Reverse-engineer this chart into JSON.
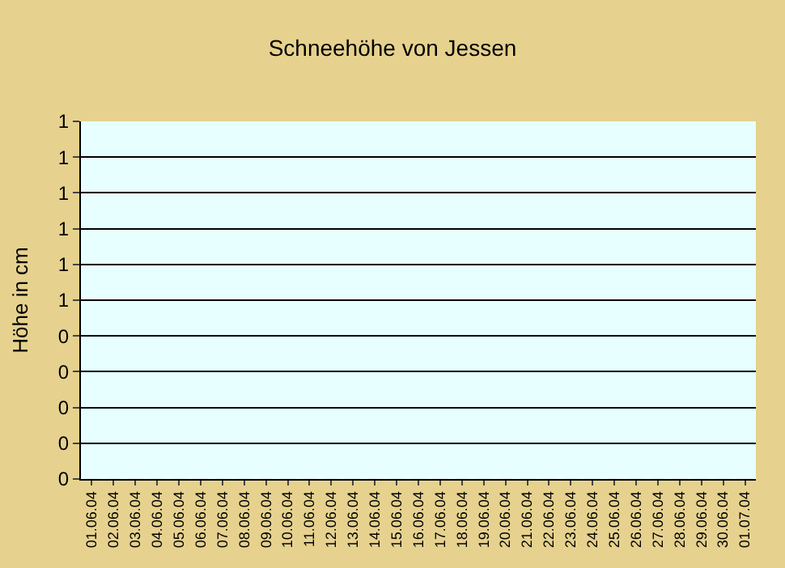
{
  "chart_data": {
    "type": "bar",
    "title": "Schneehöhe von Jessen",
    "ylabel": "Höhe in cm",
    "categories": [
      "01.06.04",
      "02.06.04",
      "03.06.04",
      "04.06.04",
      "05.06.04",
      "06.06.04",
      "07.06.04",
      "08.06.04",
      "09.06.04",
      "10.06.04",
      "11.06.04",
      "12.06.04",
      "13.06.04",
      "14.06.04",
      "15.06.04",
      "16.06.04",
      "17.06.04",
      "18.06.04",
      "19.06.04",
      "20.06.04",
      "21.06.04",
      "22.06.04",
      "23.06.04",
      "24.06.04",
      "25.06.04",
      "26.06.04",
      "27.06.04",
      "28.06.04",
      "29.06.04",
      "30.06.04",
      "01.07.04"
    ],
    "values": [
      0,
      0,
      0,
      0,
      0,
      0,
      0,
      0,
      0,
      0,
      0,
      0,
      0,
      0,
      0,
      0,
      0,
      0,
      0,
      0,
      0,
      0,
      0,
      0,
      0,
      0,
      0,
      0,
      0,
      0,
      0
    ],
    "ylim": [
      0,
      1
    ],
    "yticks": [
      0,
      {
        "value": 0.1,
        "label": "0"
      },
      {
        "value": 0.2,
        "label": "0"
      },
      {
        "value": 0.3,
        "label": "0"
      },
      {
        "value": 0.4,
        "label": "0"
      },
      {
        "value": 0.5,
        "label": "1"
      },
      {
        "value": 0.6,
        "label": "1"
      },
      {
        "value": 0.7,
        "label": "1"
      },
      {
        "value": 0.8,
        "label": "1"
      },
      {
        "value": 0.9,
        "label": "1"
      },
      1
    ],
    "grid": "y"
  }
}
